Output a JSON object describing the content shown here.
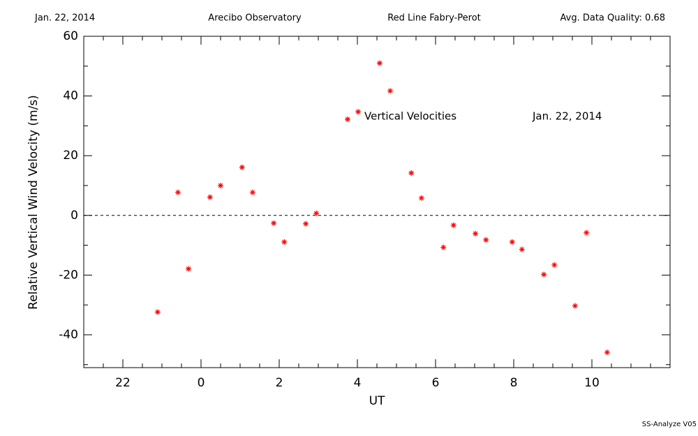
{
  "chart_data": {
    "type": "scatter",
    "header": [
      "Jan. 22, 2014",
      "Arecibo Observatory",
      "Red Line Fabry-Perot",
      "Avg. Data Quality: 0.68"
    ],
    "footer": "SS-Analyze V05",
    "xlabel": "UT",
    "ylabel": "Relative Vertical Wind Velocity (m/s)",
    "annotations": [
      "Vertical Velocities",
      "Jan. 22, 2014"
    ],
    "xlim": [
      21,
      36
    ],
    "ylim": [
      -51,
      60
    ],
    "xticks": [
      22,
      {
        "value": 24,
        "label": "0"
      },
      {
        "value": 26,
        "label": "2"
      },
      {
        "value": 28,
        "label": "4"
      },
      {
        "value": 30,
        "label": "6"
      },
      {
        "value": 32,
        "label": "8"
      },
      {
        "value": 34,
        "label": "10"
      }
    ],
    "xminorticks": [
      21.5,
      22.5,
      23,
      23.5,
      24.5,
      25,
      25.5,
      26.5,
      27,
      27.5,
      28.5,
      29,
      29.5,
      30.5,
      31,
      31.5,
      32.5,
      33,
      33.5,
      34.5,
      35,
      35.5
    ],
    "yticks": [
      -40,
      -20,
      0,
      20,
      40,
      60
    ],
    "yminorticks": [
      -50,
      -30,
      -10,
      10,
      30,
      50
    ],
    "hline": 0,
    "color": "#ff0000",
    "x": [
      22.89,
      23.41,
      23.68,
      24.23,
      24.5,
      25.05,
      25.32,
      25.86,
      26.13,
      26.68,
      26.95,
      27.75,
      28.02,
      28.57,
      28.84,
      29.38,
      29.64,
      30.2,
      30.46,
      31.02,
      31.29,
      31.96,
      32.21,
      32.77,
      33.04,
      33.57,
      33.86,
      34.39
    ],
    "values": [
      -32.4,
      7.7,
      -17.9,
      6.1,
      10.0,
      16.1,
      7.7,
      -2.6,
      -8.9,
      -2.8,
      0.7,
      32.2,
      34.7,
      51.0,
      41.7,
      14.2,
      5.8,
      -10.7,
      -3.3,
      -6.1,
      -8.2,
      -8.9,
      -11.4,
      -19.8,
      -16.6,
      -30.3,
      -5.8,
      -45.9
    ]
  }
}
